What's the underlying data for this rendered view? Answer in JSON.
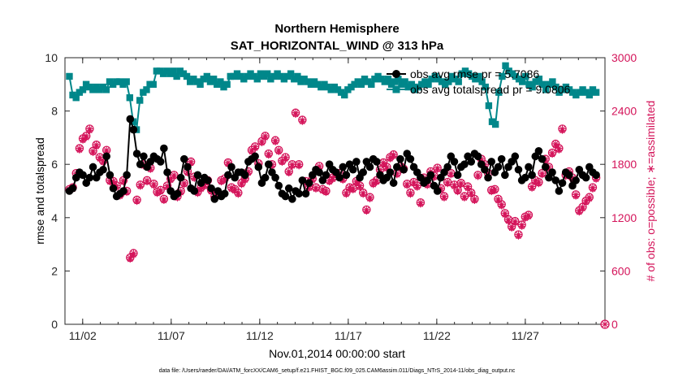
{
  "figure": {
    "title_line1": "Northern Hemisphere",
    "title_line2": "SAT_HORIZONTAL_WIND @ 313 hPa",
    "footnote": "data file: /Users/raeder/DAI/ATM_forcXX/CAM6_setup/f.e21.FHIST_BGC.f09_025.CAM6assim.011/Diags_NTrS_2014-11/obs_diag_output.nc"
  },
  "chart_data": {
    "type": "line",
    "xlabel": "Nov.01,2014 00:00:00 start",
    "ylabel_left": "rmse and totalspread",
    "ylabel_right": "# of obs: o=possible; ∗=assimilated",
    "x_ticks": [
      "11/02",
      "11/07",
      "11/12",
      "11/17",
      "11/22",
      "11/27"
    ],
    "x_tick_days": [
      1,
      6,
      11,
      16,
      21,
      26
    ],
    "xlim_days": [
      0,
      30.5
    ],
    "ylim_left": [
      0,
      10
    ],
    "y_ticks_left": [
      "0",
      "2",
      "4",
      "6",
      "8",
      "10"
    ],
    "ylim_right": [
      0,
      3000
    ],
    "y_ticks_right": [
      "0",
      "600",
      "1200",
      "1800",
      "2400",
      "3000"
    ],
    "grid": false,
    "legend_placement": "top-right",
    "colors": {
      "rmse": "#000000",
      "spread": "#00878a",
      "obs": "#d4145a",
      "axis": "#262626"
    },
    "series": [
      {
        "name": "obs avg rmse pr = 5.7086",
        "axis": "left",
        "marker": "circle",
        "values": [
          5.0,
          5.1,
          5.5,
          5.7,
          5.6,
          5.3,
          5.5,
          5.9,
          5.5,
          5.7,
          5.8,
          6.3,
          5.6,
          5.1,
          4.8,
          4.9,
          5.0,
          5.6,
          7.7,
          7.3,
          6.4,
          6.0,
          6.3,
          5.9,
          6.1,
          6.3,
          6.2,
          6.1,
          6.6,
          5.7,
          5.0,
          4.8,
          4.9,
          5.5,
          6.2,
          5.9,
          5.1,
          5.0,
          5.6,
          5.3,
          5.5,
          5.4,
          5.1,
          4.7,
          5.0,
          4.8,
          4.9,
          5.6,
          5.9,
          5.5,
          5.7,
          5.7,
          5.6,
          6.1,
          6.2,
          6.3,
          5.9,
          5.3,
          5.5,
          6.0,
          5.7,
          5.5,
          5.2,
          4.9,
          4.8,
          5.1,
          4.7,
          5.0,
          4.9,
          5.4,
          4.9,
          5.3,
          5.6,
          5.8,
          5.7,
          5.4,
          5.6,
          6.0,
          5.8,
          5.7,
          5.5,
          5.9,
          5.6,
          6.0,
          5.8,
          6.1,
          5.5,
          5.7,
          6.1,
          5.9,
          6.2,
          6.1,
          5.6,
          5.4,
          5.5,
          5.7,
          5.3,
          5.9,
          6.2,
          5.8,
          6.4,
          6.2,
          5.9,
          5.7,
          5.5,
          5.3,
          5.4,
          5.6,
          5.2,
          5.0,
          5.5,
          5.7,
          5.9,
          6.3,
          6.1,
          5.6,
          5.9,
          6.0,
          6.3,
          6.1,
          6.4,
          6.3,
          6.0,
          5.8,
          5.5,
          6.1,
          5.7,
          5.9,
          6.2,
          5.6,
          5.9,
          6.1,
          6.3,
          5.8,
          5.4,
          5.5,
          5.9,
          5.6,
          6.3,
          6.5,
          6.2,
          5.9,
          5.5,
          5.7,
          5.4,
          5.0,
          5.3,
          5.7,
          5.6,
          5.2,
          5.4,
          5.8,
          5.6,
          5.5,
          5.9,
          5.7,
          5.6
        ]
      },
      {
        "name": "obs avg totalspread pr = 9.0806",
        "axis": "left",
        "marker": "square",
        "values": [
          9.3,
          8.6,
          8.5,
          8.7,
          8.8,
          9.0,
          8.9,
          8.8,
          8.9,
          8.8,
          8.9,
          8.8,
          9.1,
          9.0,
          9.1,
          9.1,
          9.0,
          9.1,
          8.5,
          7.6,
          7.3,
          8.4,
          8.7,
          8.8,
          9.0,
          9.0,
          9.5,
          9.5,
          9.4,
          9.5,
          9.4,
          9.5,
          9.3,
          9.5,
          9.4,
          9.3,
          9.1,
          9.2,
          9.1,
          9.0,
          9.2,
          9.3,
          9.1,
          9.2,
          9.0,
          9.1,
          8.9,
          9.0,
          9.3,
          9.3,
          9.4,
          9.3,
          9.2,
          9.3,
          9.4,
          9.3,
          9.2,
          9.4,
          9.3,
          9.4,
          9.2,
          9.3,
          9.4,
          9.3,
          9.2,
          9.3,
          9.4,
          9.2,
          9.3,
          9.1,
          9.2,
          9.1,
          9.0,
          9.1,
          9.0,
          8.9,
          9.0,
          8.9,
          8.8,
          8.9,
          8.8,
          8.7,
          8.6,
          8.8,
          8.9,
          9.0,
          9.1,
          9.0,
          9.2,
          9.1,
          9.0,
          9.2,
          9.3,
          9.2,
          9.1,
          9.2,
          9.0,
          9.1,
          9.2,
          9.0,
          9.1,
          8.9,
          9.0,
          8.8,
          8.9,
          9.0,
          9.1,
          9.0,
          9.2,
          9.3,
          9.2,
          9.1,
          9.0,
          9.1,
          9.3,
          9.2,
          9.1,
          9.4,
          9.5,
          9.4,
          9.3,
          9.2,
          9.3,
          9.1,
          8.9,
          8.2,
          7.6,
          7.5,
          8.7,
          9.3,
          9.7,
          9.5,
          9.4,
          9.3,
          9.2,
          9.1,
          9.3,
          9.0,
          8.9,
          9.1,
          9.2,
          9.0,
          8.8,
          9.0,
          9.1,
          8.9,
          8.7,
          8.8,
          8.9,
          8.8,
          8.7,
          8.6,
          8.7,
          8.8,
          8.7,
          8.6,
          8.8,
          8.7
        ]
      },
      {
        "name": "obs count possible",
        "axis": "right",
        "marker": "circle-plus",
        "values": [
          1520,
          1540,
          1700,
          1980,
          2090,
          2120,
          2200,
          1950,
          2020,
          1880,
          1840,
          1960,
          1620,
          1610,
          1560,
          1460,
          1620,
          1500,
          750,
          800,
          1400,
          1570,
          1800,
          1620,
          1760,
          1580,
          1490,
          1510,
          1410,
          1560,
          1640,
          1680,
          1440,
          1500,
          1590,
          1720,
          1830,
          1660,
          1490,
          1540,
          1570,
          1620,
          1510,
          1440,
          1480,
          1620,
          1640,
          1820,
          1540,
          1520,
          1480,
          1590,
          1640,
          1720,
          1960,
          2000,
          1810,
          2060,
          2120,
          1920,
          1800,
          2070,
          1960,
          1840,
          1880,
          1720,
          1800,
          2380,
          1800,
          2300,
          1610,
          1550,
          1640,
          1540,
          1780,
          1520,
          1500,
          1620,
          1650,
          1700,
          1700,
          1640,
          1480,
          1540,
          1530,
          1610,
          1560,
          1480,
          1290,
          1430,
          1590,
          1620,
          1740,
          1820,
          1770,
          1880,
          1910,
          1700,
          1780,
          1750,
          1580,
          1480,
          1600,
          1560,
          1370,
          1650,
          1580,
          1720,
          1670,
          1760,
          1530,
          1440,
          1600,
          1700,
          1570,
          1510,
          1590,
          1440,
          1550,
          1480,
          1410,
          1680,
          1860,
          1800,
          1700,
          1510,
          1520,
          1410,
          1350,
          1250,
          1180,
          1100,
          1160,
          1010,
          1120,
          1210,
          1230,
          1550,
          1620,
          1600,
          1700,
          1860,
          1770,
          1930,
          2030,
          1980,
          2200,
          1680,
          1720,
          1650,
          1460,
          1280,
          1320,
          1390,
          1430,
          1540,
          1650
        ]
      },
      {
        "name": "obs count assimilated",
        "axis": "right",
        "marker": "asterisk",
        "values": [
          1500,
          1520,
          1680,
          1960,
          2070,
          2100,
          2180,
          1930,
          2000,
          1860,
          1820,
          1940,
          1600,
          1590,
          1540,
          1440,
          1600,
          1480,
          730,
          780,
          1380,
          1550,
          1780,
          1600,
          1740,
          1560,
          1470,
          1490,
          1390,
          1540,
          1620,
          1660,
          1420,
          1480,
          1570,
          1700,
          1810,
          1640,
          1470,
          1520,
          1550,
          1600,
          1490,
          1420,
          1460,
          1600,
          1620,
          1800,
          1520,
          1500,
          1460,
          1570,
          1620,
          1700,
          1940,
          1980,
          1790,
          2040,
          2100,
          1900,
          1780,
          2050,
          1940,
          1820,
          1860,
          1700,
          1780,
          2360,
          1780,
          2280,
          1590,
          1530,
          1620,
          1520,
          1760,
          1500,
          1480,
          1600,
          1630,
          1680,
          1680,
          1620,
          1460,
          1520,
          1510,
          1590,
          1540,
          1460,
          1270,
          1410,
          1570,
          1600,
          1720,
          1800,
          1750,
          1860,
          1890,
          1680,
          1760,
          1730,
          1560,
          1460,
          1580,
          1540,
          1350,
          1630,
          1560,
          1700,
          1650,
          1740,
          1510,
          1420,
          1580,
          1680,
          1550,
          1490,
          1570,
          1420,
          1530,
          1460,
          1390,
          1660,
          1840,
          1780,
          1680,
          1490,
          1500,
          1390,
          1330,
          1230,
          1160,
          1080,
          1140,
          990,
          1100,
          1190,
          1210,
          1530,
          1600,
          1580,
          1680,
          1840,
          1750,
          1910,
          2010,
          1960,
          2180,
          1660,
          1700,
          1630,
          1440,
          1260,
          1300,
          1370,
          1410,
          1520,
          1630
        ]
      }
    ]
  }
}
